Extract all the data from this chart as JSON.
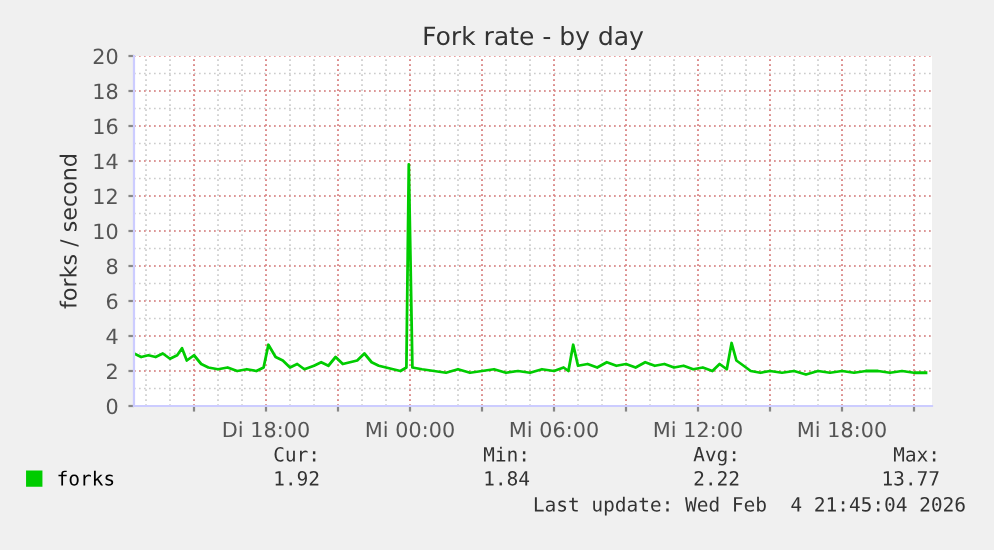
{
  "chart_data": {
    "type": "line",
    "title": "Fork rate - by day",
    "ylabel": "forks / second",
    "x": [
      "2026-02-03T12:30",
      "2026-02-03T12:48",
      "2026-02-03T13:06",
      "2026-02-03T13:24",
      "2026-02-03T13:42",
      "2026-02-03T14:00",
      "2026-02-03T14:18",
      "2026-02-03T14:30",
      "2026-02-03T14:42",
      "2026-02-03T15:00",
      "2026-02-03T15:18",
      "2026-02-03T15:36",
      "2026-02-03T16:00",
      "2026-02-03T16:24",
      "2026-02-03T16:48",
      "2026-02-03T17:12",
      "2026-02-03T17:36",
      "2026-02-03T17:54",
      "2026-02-03T18:06",
      "2026-02-03T18:24",
      "2026-02-03T18:42",
      "2026-02-03T19:00",
      "2026-02-03T19:18",
      "2026-02-03T19:36",
      "2026-02-03T20:00",
      "2026-02-03T20:18",
      "2026-02-03T20:36",
      "2026-02-03T20:54",
      "2026-02-03T21:12",
      "2026-02-03T21:30",
      "2026-02-03T21:48",
      "2026-02-03T22:06",
      "2026-02-03T22:24",
      "2026-02-03T22:42",
      "2026-02-03T23:00",
      "2026-02-03T23:18",
      "2026-02-03T23:36",
      "2026-02-03T23:51",
      "2026-02-03T23:57",
      "2026-02-04T00:06",
      "2026-02-04T00:30",
      "2026-02-04T01:00",
      "2026-02-04T01:30",
      "2026-02-04T02:00",
      "2026-02-04T02:30",
      "2026-02-04T03:00",
      "2026-02-04T03:30",
      "2026-02-04T04:00",
      "2026-02-04T04:30",
      "2026-02-04T05:00",
      "2026-02-04T05:30",
      "2026-02-04T06:00",
      "2026-02-04T06:24",
      "2026-02-04T06:36",
      "2026-02-04T06:48",
      "2026-02-04T07:00",
      "2026-02-04T07:24",
      "2026-02-04T07:48",
      "2026-02-04T08:12",
      "2026-02-04T08:36",
      "2026-02-04T09:00",
      "2026-02-04T09:24",
      "2026-02-04T09:48",
      "2026-02-04T10:12",
      "2026-02-04T10:36",
      "2026-02-04T11:00",
      "2026-02-04T11:24",
      "2026-02-04T11:48",
      "2026-02-04T12:12",
      "2026-02-04T12:36",
      "2026-02-04T12:54",
      "2026-02-04T13:12",
      "2026-02-04T13:24",
      "2026-02-04T13:36",
      "2026-02-04T13:54",
      "2026-02-04T14:12",
      "2026-02-04T14:36",
      "2026-02-04T15:00",
      "2026-02-04T15:30",
      "2026-02-04T16:00",
      "2026-02-04T16:30",
      "2026-02-04T17:00",
      "2026-02-04T17:30",
      "2026-02-04T18:00",
      "2026-02-04T18:30",
      "2026-02-04T19:00",
      "2026-02-04T19:30",
      "2026-02-04T20:00",
      "2026-02-04T20:30",
      "2026-02-04T21:00",
      "2026-02-04T21:30"
    ],
    "series": [
      {
        "name": "forks",
        "color": "#00cc00",
        "values": [
          3.0,
          2.8,
          2.9,
          2.8,
          3.0,
          2.7,
          2.9,
          3.3,
          2.6,
          2.9,
          2.4,
          2.2,
          2.1,
          2.2,
          2.0,
          2.1,
          2.0,
          2.2,
          3.5,
          2.8,
          2.6,
          2.2,
          2.4,
          2.1,
          2.3,
          2.5,
          2.3,
          2.8,
          2.4,
          2.5,
          2.6,
          3.0,
          2.5,
          2.3,
          2.2,
          2.1,
          2.0,
          2.2,
          13.8,
          2.2,
          2.1,
          2.0,
          1.9,
          2.1,
          1.9,
          2.0,
          2.1,
          1.9,
          2.0,
          1.9,
          2.1,
          2.0,
          2.2,
          2.0,
          3.5,
          2.3,
          2.4,
          2.2,
          2.5,
          2.3,
          2.4,
          2.2,
          2.5,
          2.3,
          2.4,
          2.2,
          2.3,
          2.1,
          2.2,
          2.0,
          2.4,
          2.1,
          3.6,
          2.6,
          2.3,
          2.0,
          1.9,
          2.0,
          1.9,
          2.0,
          1.8,
          2.0,
          1.9,
          2.0,
          1.9,
          2.0,
          2.0,
          1.9,
          2.0,
          1.9,
          1.9
        ]
      }
    ],
    "xlim": [
      "2026-02-03T12:30",
      "2026-02-04T21:45"
    ],
    "xticks": [
      {
        "value": "2026-02-03T15:00",
        "label": null
      },
      {
        "value": "2026-02-03T18:00",
        "label": "Di 18:00"
      },
      {
        "value": "2026-02-03T21:00",
        "label": null
      },
      {
        "value": "2026-02-04T00:00",
        "label": "Mi 00:00"
      },
      {
        "value": "2026-02-04T03:00",
        "label": null
      },
      {
        "value": "2026-02-04T06:00",
        "label": "Mi 06:00"
      },
      {
        "value": "2026-02-04T09:00",
        "label": null
      },
      {
        "value": "2026-02-04T12:00",
        "label": "Mi 12:00"
      },
      {
        "value": "2026-02-04T15:00",
        "label": null
      },
      {
        "value": "2026-02-04T18:00",
        "label": "Mi 18:00"
      },
      {
        "value": "2026-02-04T21:00",
        "label": null
      }
    ],
    "ylim": [
      0,
      20
    ],
    "yticks": [
      0,
      2,
      4,
      6,
      8,
      10,
      12,
      14,
      16,
      18,
      20
    ],
    "grid": true,
    "legend": "bottom left",
    "marker": "none",
    "line_style": "solid",
    "annotations": [
      "Cur:",
      "Min:",
      "Avg:",
      "Max:",
      "1.92",
      "1.84",
      "2.22",
      "13.77",
      "Last update: Wed Feb  4 21:45:04 2026"
    ]
  }
}
